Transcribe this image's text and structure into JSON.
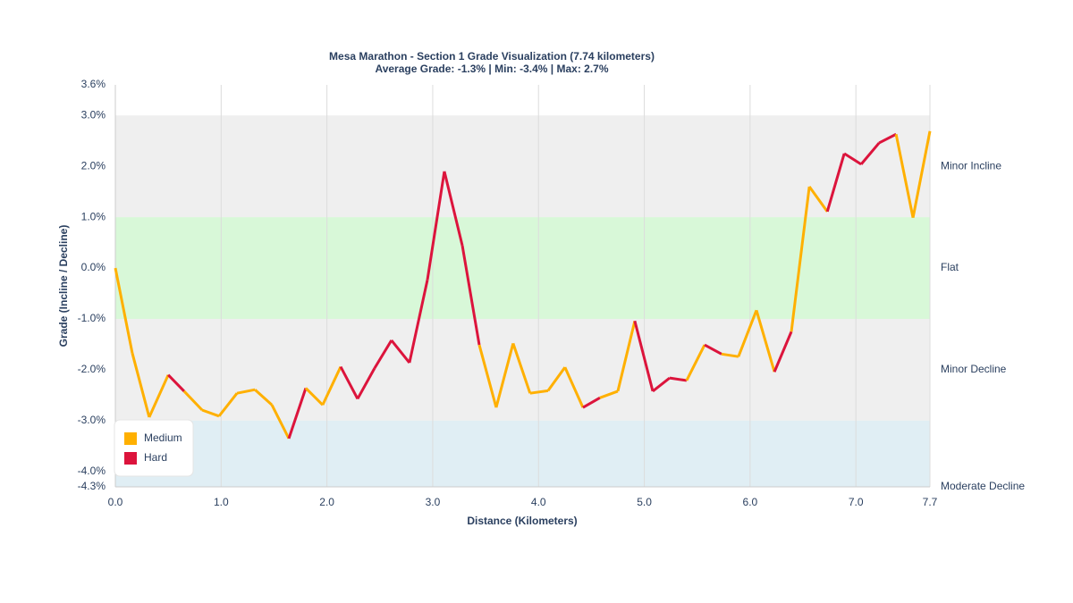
{
  "chart_data": {
    "type": "line",
    "title": "Mesa Marathon - Section 1 Grade Visualization (7.74 kilometers)",
    "subtitle": "Average Grade: -1.3% | Min: -3.4% | Max: 2.7%",
    "x_label": "Distance (Kilometers)",
    "y_label": "Grade (Incline / Decline)",
    "x": [
      0,
      0.16,
      0.32,
      0.5,
      0.65,
      0.82,
      0.98,
      1.15,
      1.32,
      1.48,
      1.64,
      1.8,
      1.96,
      2.13,
      2.29,
      2.45,
      2.61,
      2.78,
      2.95,
      3.11,
      3.28,
      3.44,
      3.6,
      3.76,
      3.92,
      4.09,
      4.25,
      4.42,
      4.58,
      4.75,
      4.91,
      5.08,
      5.24,
      5.4,
      5.57,
      5.73,
      5.89,
      6.06,
      6.23,
      6.39,
      6.56,
      6.73,
      6.89,
      7.05,
      7.22,
      7.38,
      7.54,
      7.7
    ],
    "values": [
      0,
      -1.67,
      -2.93,
      -2.1,
      -2.42,
      -2.79,
      -2.91,
      -2.46,
      -2.39,
      -2.69,
      -3.35,
      -2.36,
      -2.69,
      -1.94,
      -2.57,
      -1.97,
      -1.42,
      -1.86,
      -0.23,
      1.9,
      0.44,
      -1.51,
      -2.74,
      -1.48,
      -2.46,
      -2.41,
      -1.95,
      -2.74,
      -2.55,
      -2.42,
      -1.04,
      -2.42,
      -2.16,
      -2.21,
      -1.51,
      -1.69,
      -1.74,
      -0.83,
      -2.04,
      -1.25,
      1.6,
      1.11,
      2.25,
      2.04,
      2.46,
      2.63,
      0.99,
      2.69
    ],
    "segment_series": [
      "Medium",
      "Medium",
      "Medium",
      "Hard",
      "Medium",
      "Medium",
      "Medium",
      "Medium",
      "Medium",
      "Medium",
      "Hard",
      "Medium",
      "Medium",
      "Hard",
      "Hard",
      "Hard",
      "Hard",
      "Hard",
      "Hard",
      "Hard",
      "Hard",
      "Medium",
      "Medium",
      "Medium",
      "Medium",
      "Medium",
      "Medium",
      "Hard",
      "Medium",
      "Medium",
      "Hard",
      "Hard",
      "Hard",
      "Medium",
      "Hard",
      "Medium",
      "Medium",
      "Medium",
      "Hard",
      "Medium",
      "Medium",
      "Hard",
      "Hard",
      "Hard",
      "Hard",
      "Medium",
      "Medium"
    ],
    "series": [
      {
        "name": "Medium",
        "color": "#ffb000"
      },
      {
        "name": "Hard",
        "color": "#dc143c"
      }
    ],
    "bands": [
      {
        "range": [
          1,
          3
        ],
        "color": "#efefef"
      },
      {
        "range": [
          -1,
          1
        ],
        "color": "#d8f8d8"
      },
      {
        "range": [
          -3,
          -1
        ],
        "color": "#efefef"
      },
      {
        "range": [
          -4.3,
          -3
        ],
        "color": "#e0eef4"
      }
    ],
    "xlim": [
      0,
      7.7
    ],
    "xticks": [
      {
        "value": 0,
        "label": "0.0"
      },
      {
        "value": 1,
        "label": "1.0"
      },
      {
        "value": 2,
        "label": "2.0"
      },
      {
        "value": 3,
        "label": "3.0"
      },
      {
        "value": 4,
        "label": "4.0"
      },
      {
        "value": 5,
        "label": "5.0"
      },
      {
        "value": 6,
        "label": "6.0"
      },
      {
        "value": 7,
        "label": "7.0"
      },
      7.7
    ],
    "ylim": [
      -4.3,
      3.6
    ],
    "yticks": [
      {
        "value": -4.3,
        "label": "-4.3%"
      },
      {
        "value": -4,
        "label": "-4.0%"
      },
      {
        "value": -3,
        "label": "-3.0%"
      },
      {
        "value": -2,
        "label": "-2.0%"
      },
      {
        "value": -1,
        "label": "-1.0%"
      },
      {
        "value": 0,
        "label": "0.0%"
      },
      {
        "value": 1,
        "label": "1.0%"
      },
      {
        "value": 2,
        "label": "2.0%"
      },
      {
        "value": 3,
        "label": "3.0%"
      },
      {
        "value": 3.6,
        "label": "3.6%"
      }
    ],
    "y2lim": [
      -4.3,
      3.6
    ],
    "y2ticks": [
      {
        "value": -4.3,
        "label": "Moderate Decline"
      },
      {
        "value": -2,
        "label": "Minor Decline"
      },
      {
        "value": 0,
        "label": "Flat"
      },
      {
        "value": 2,
        "label": "Minor Incline"
      }
    ],
    "grid": "x",
    "legend": "lower left"
  }
}
